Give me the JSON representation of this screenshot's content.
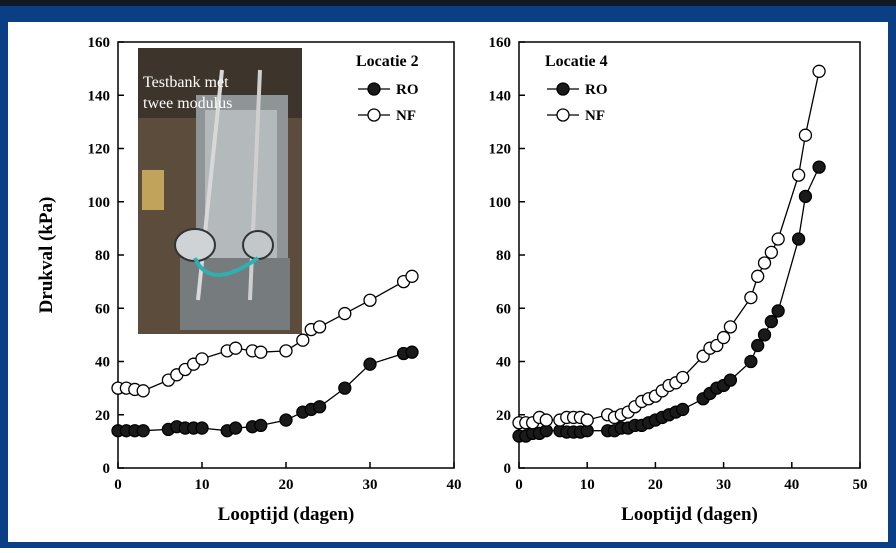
{
  "colors": {
    "frame": "#0a3f86",
    "frame_top": "#111a24",
    "axis": "#000000",
    "filled_marker": "#1a1a1a",
    "open_marker": "#ffffff"
  },
  "photo": {
    "caption_lines": [
      "Testbank met",
      "twee modulus"
    ],
    "description_icon": "photo-of-test-rig"
  },
  "ylabel": "Drukval (kPa)",
  "chart_data": [
    {
      "type": "scatter",
      "title": "Locatie 2",
      "xlabel": "Looptijd (dagen)",
      "ylabel": "Drukval (kPa)",
      "xlim": [
        0,
        40
      ],
      "ylim": [
        0,
        160
      ],
      "xticks": [
        0,
        10,
        20,
        30,
        40
      ],
      "yticks": [
        0,
        20,
        40,
        60,
        80,
        100,
        120,
        140,
        160
      ],
      "legend_position": "top-right",
      "grid": false,
      "series": [
        {
          "name": "RO",
          "marker": "filled",
          "x": [
            0,
            1,
            2,
            3,
            6,
            7,
            8,
            9,
            10,
            13,
            14,
            16,
            17,
            20,
            22,
            23,
            24,
            27,
            30,
            34,
            35
          ],
          "y": [
            14,
            14,
            14,
            14,
            14.5,
            15.5,
            15,
            15,
            15,
            14,
            15,
            15.5,
            16,
            18,
            21,
            22,
            23,
            30,
            39,
            43,
            43.5
          ]
        },
        {
          "name": "NF",
          "marker": "open",
          "x": [
            0,
            1,
            2,
            3,
            6,
            7,
            8,
            9,
            10,
            13,
            14,
            16,
            17,
            20,
            22,
            23,
            24,
            27,
            30,
            34,
            35
          ],
          "y": [
            30,
            30,
            29.5,
            29,
            33,
            35,
            37,
            39,
            41,
            44,
            45,
            44,
            43.5,
            44,
            48,
            52,
            53,
            58,
            63,
            70,
            72
          ]
        }
      ]
    },
    {
      "type": "scatter",
      "title": "Locatie 4",
      "xlabel": "Looptijd (dagen)",
      "ylabel": "",
      "xlim": [
        0,
        50
      ],
      "ylim": [
        0,
        160
      ],
      "xticks": [
        0,
        10,
        20,
        30,
        40,
        50
      ],
      "yticks": [
        0,
        20,
        40,
        60,
        80,
        100,
        120,
        140,
        160
      ],
      "legend_position": "top-left",
      "grid": false,
      "series": [
        {
          "name": "RO",
          "marker": "filled",
          "x": [
            0,
            1,
            2,
            3,
            4,
            6,
            7,
            8,
            9,
            10,
            13,
            14,
            15,
            16,
            17,
            18,
            19,
            20,
            21,
            22,
            23,
            24,
            27,
            28,
            29,
            30,
            31,
            34,
            35,
            36,
            37,
            38,
            41,
            42,
            44
          ],
          "y": [
            12,
            12,
            13,
            13,
            14,
            14,
            13.5,
            13.5,
            13.5,
            14,
            14,
            14,
            15,
            15,
            16,
            16,
            17,
            18,
            19,
            20,
            21,
            22,
            26,
            28,
            30,
            31,
            33,
            40,
            46,
            50,
            55,
            59,
            86,
            102,
            113
          ]
        },
        {
          "name": "NF",
          "marker": "open",
          "x": [
            0,
            1,
            2,
            3,
            4,
            6,
            7,
            8,
            9,
            10,
            13,
            14,
            15,
            16,
            17,
            18,
            19,
            20,
            21,
            22,
            23,
            24,
            27,
            28,
            29,
            30,
            31,
            34,
            35,
            36,
            37,
            38,
            41,
            42,
            44
          ],
          "y": [
            17,
            17,
            17,
            19,
            18,
            18,
            19,
            19,
            19,
            18,
            20,
            19,
            20,
            21,
            23,
            25,
            26,
            27,
            29,
            31,
            32,
            34,
            42,
            45,
            46,
            49,
            53,
            64,
            72,
            77,
            81,
            86,
            110,
            125,
            149
          ]
        }
      ]
    }
  ]
}
